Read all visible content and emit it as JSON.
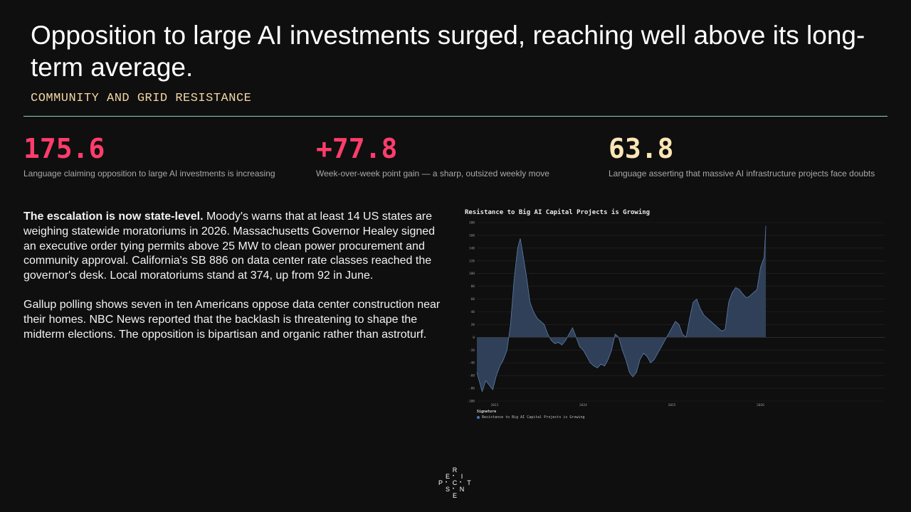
{
  "header": {
    "title": "Opposition to large AI investments surged, reaching well above its long-term average.",
    "subtitle": "COMMUNITY AND GRID RESISTANCE"
  },
  "colors": {
    "accent_red": "#ff3d6b",
    "accent_cream": "#fde6b4",
    "rule": "#8fd3b4",
    "series_fill": "#2f4058",
    "series_line": "#5d7ea8"
  },
  "stats": [
    {
      "value": "175.6",
      "desc": "Language claiming opposition to large AI investments is increasing",
      "color": "#ff3d6b"
    },
    {
      "value": "+77.8",
      "desc": "Week-over-week point gain — a sharp, outsized weekly move",
      "color": "#ff3d6b"
    },
    {
      "value": "63.8",
      "desc": "Language asserting that massive AI infrastructure projects face doubts",
      "color": "#fde6b4"
    }
  ],
  "body": {
    "p1_bold": "The escalation is now state-level.",
    "p1_rest": " Moody's warns that at least 14 US states are weighing statewide moratoriums in 2026. Massachusetts Governor Healey signed an executive order tying permits above 25 MW to clean power procurement and community approval. California's SB 886 on data center rate classes reached the governor's desk. Local moratoriums stand at 374, up from 92 in June.",
    "p2": "Gallup polling shows seven in ten Americans oppose data center construction near their homes. NBC News reported that the backlash is threatening to shape the midterm elections. The opposition is bipartisan and organic rather than astroturf."
  },
  "chart_data": {
    "type": "area",
    "title": "Resistance to Big AI Capital Projects is Growing",
    "xlabel": "",
    "ylabel": "",
    "ylim": [
      -100,
      180
    ],
    "yticks": [
      -100,
      -80,
      -60,
      -40,
      -20,
      0,
      20,
      40,
      60,
      80,
      100,
      120,
      140,
      160,
      180
    ],
    "xlim": [
      2022.3,
      2026.9
    ],
    "xticks": [
      {
        "x": 2022.5,
        "label": "2023"
      },
      {
        "x": 2023.5,
        "label": "2024"
      },
      {
        "x": 2024.5,
        "label": "2025"
      },
      {
        "x": 2025.5,
        "label": "2026"
      }
    ],
    "grid": true,
    "legend": {
      "title": "Signature",
      "placement": "bottom-left"
    },
    "series": [
      {
        "name": "Resistance to Big AI Capital Projects is Growing",
        "points": [
          [
            2022.3,
            -55
          ],
          [
            2022.33,
            -70
          ],
          [
            2022.36,
            -85
          ],
          [
            2022.4,
            -68
          ],
          [
            2022.44,
            -75
          ],
          [
            2022.48,
            -82
          ],
          [
            2022.52,
            -60
          ],
          [
            2022.56,
            -45
          ],
          [
            2022.6,
            -35
          ],
          [
            2022.64,
            -20
          ],
          [
            2022.68,
            20
          ],
          [
            2022.72,
            90
          ],
          [
            2022.76,
            140
          ],
          [
            2022.79,
            155
          ],
          [
            2022.82,
            130
          ],
          [
            2022.86,
            95
          ],
          [
            2022.9,
            55
          ],
          [
            2022.94,
            40
          ],
          [
            2022.98,
            30
          ],
          [
            2023.02,
            25
          ],
          [
            2023.06,
            20
          ],
          [
            2023.1,
            5
          ],
          [
            2023.14,
            -5
          ],
          [
            2023.18,
            -10
          ],
          [
            2023.22,
            -8
          ],
          [
            2023.26,
            -12
          ],
          [
            2023.3,
            -5
          ],
          [
            2023.34,
            5
          ],
          [
            2023.38,
            15
          ],
          [
            2023.42,
            0
          ],
          [
            2023.46,
            -15
          ],
          [
            2023.5,
            -20
          ],
          [
            2023.54,
            -30
          ],
          [
            2023.58,
            -40
          ],
          [
            2023.62,
            -45
          ],
          [
            2023.66,
            -48
          ],
          [
            2023.7,
            -42
          ],
          [
            2023.74,
            -45
          ],
          [
            2023.78,
            -35
          ],
          [
            2023.82,
            -20
          ],
          [
            2023.86,
            5
          ],
          [
            2023.9,
            0
          ],
          [
            2023.94,
            -20
          ],
          [
            2023.98,
            -35
          ],
          [
            2024.02,
            -55
          ],
          [
            2024.06,
            -62
          ],
          [
            2024.1,
            -55
          ],
          [
            2024.14,
            -35
          ],
          [
            2024.18,
            -25
          ],
          [
            2024.22,
            -30
          ],
          [
            2024.26,
            -40
          ],
          [
            2024.3,
            -35
          ],
          [
            2024.34,
            -25
          ],
          [
            2024.38,
            -15
          ],
          [
            2024.42,
            -5
          ],
          [
            2024.46,
            5
          ],
          [
            2024.5,
            15
          ],
          [
            2024.54,
            25
          ],
          [
            2024.58,
            20
          ],
          [
            2024.62,
            5
          ],
          [
            2024.66,
            0
          ],
          [
            2024.7,
            30
          ],
          [
            2024.74,
            55
          ],
          [
            2024.78,
            60
          ],
          [
            2024.82,
            45
          ],
          [
            2024.86,
            35
          ],
          [
            2024.9,
            30
          ],
          [
            2024.94,
            25
          ],
          [
            2024.98,
            20
          ],
          [
            2025.02,
            15
          ],
          [
            2025.06,
            10
          ],
          [
            2025.1,
            12
          ],
          [
            2025.14,
            55
          ],
          [
            2025.18,
            70
          ],
          [
            2025.22,
            78
          ],
          [
            2025.26,
            75
          ],
          [
            2025.3,
            68
          ],
          [
            2025.34,
            62
          ],
          [
            2025.38,
            65
          ],
          [
            2025.42,
            70
          ],
          [
            2025.46,
            75
          ],
          [
            2025.5,
            110
          ],
          [
            2025.54,
            125
          ],
          [
            2025.56,
            175
          ]
        ]
      }
    ]
  },
  "logo": {
    "letters": [
      "R",
      "E",
      "I",
      "P",
      "C",
      "T",
      "S",
      "N",
      "E"
    ]
  }
}
